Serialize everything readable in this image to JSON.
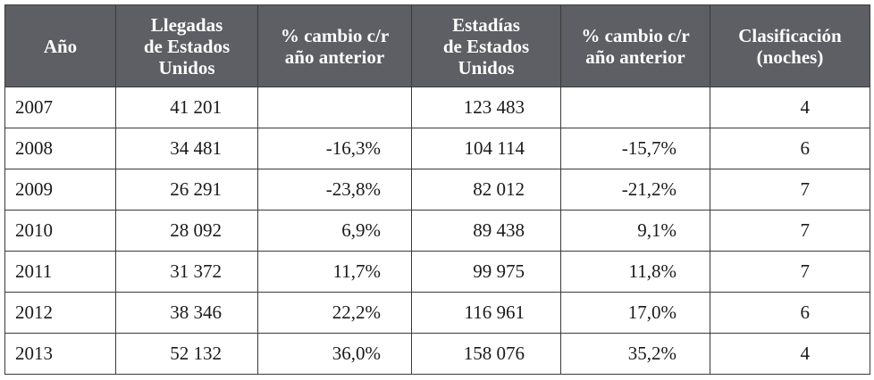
{
  "table": {
    "headers": [
      [
        "Año"
      ],
      [
        "Llegadas",
        "de Estados",
        "Unidos"
      ],
      [
        "% cambio c/r",
        "año anterior"
      ],
      [
        "Estadías",
        "de Estados",
        "Unidos"
      ],
      [
        "% cambio c/r",
        "año anterior"
      ],
      [
        "Clasificación",
        "(noches)"
      ]
    ],
    "rows": [
      [
        "2007",
        "41 201",
        "",
        "123 483",
        "",
        "4"
      ],
      [
        "2008",
        "34 481",
        "-16,3%",
        "104 114",
        "-15,7%",
        "6"
      ],
      [
        "2009",
        "26 291",
        "-23,8%",
        "82 012",
        "-21,2%",
        "7"
      ],
      [
        "2010",
        "28 092",
        "6,9%",
        "89 438",
        "9,1%",
        "7"
      ],
      [
        "2011",
        "31 372",
        "11,7%",
        "99 975",
        "11,8%",
        "7"
      ],
      [
        "2012",
        "38 346",
        "22,2%",
        "116 961",
        "17,0%",
        "6"
      ],
      [
        "2013",
        "52 132",
        "36,0%",
        "158 076",
        "35,2%",
        "4"
      ]
    ]
  }
}
